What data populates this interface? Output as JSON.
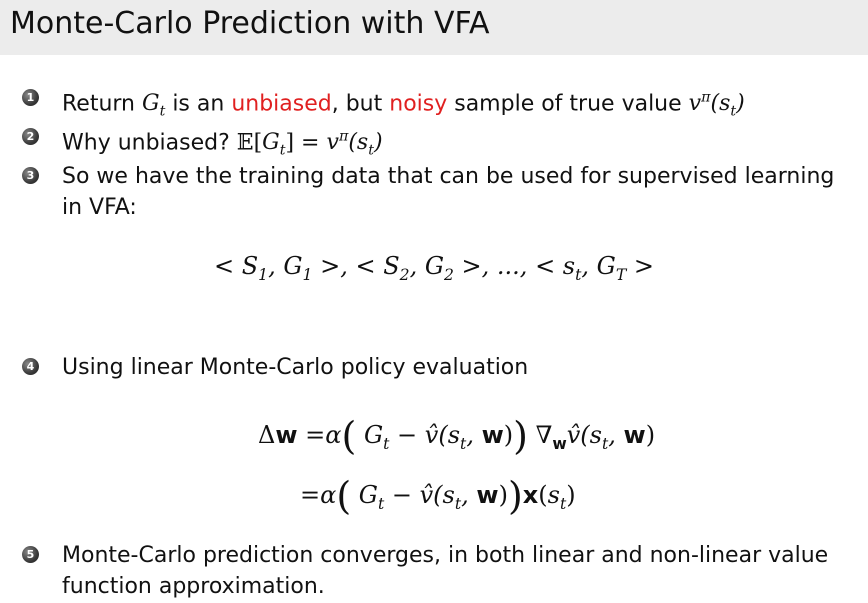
{
  "title": "Monte-Carlo Prediction with VFA",
  "bullets": [
    {
      "num": "1",
      "a": "Return ",
      "b": " is an ",
      "c": "unbiased",
      "d": ", but ",
      "e": "noisy",
      "f": " sample of true value "
    },
    {
      "num": "2",
      "a": "Why unbiased? "
    },
    {
      "num": "3",
      "line1": "So we have the training data that can be used for supervised learning",
      "line2": "in VFA:"
    },
    {
      "num": "4",
      "a": "Using linear Monte-Carlo policy evaluation"
    },
    {
      "num": "5",
      "line1": "Monte-Carlo prediction converges, in both linear and non-linear value",
      "line2": "function approximation."
    }
  ],
  "sequence": "< S1, G1 >, < S2, G2 >, ..., < st, GT >",
  "colors": {
    "accent": "#e02020",
    "title_bar": "#ececec"
  }
}
